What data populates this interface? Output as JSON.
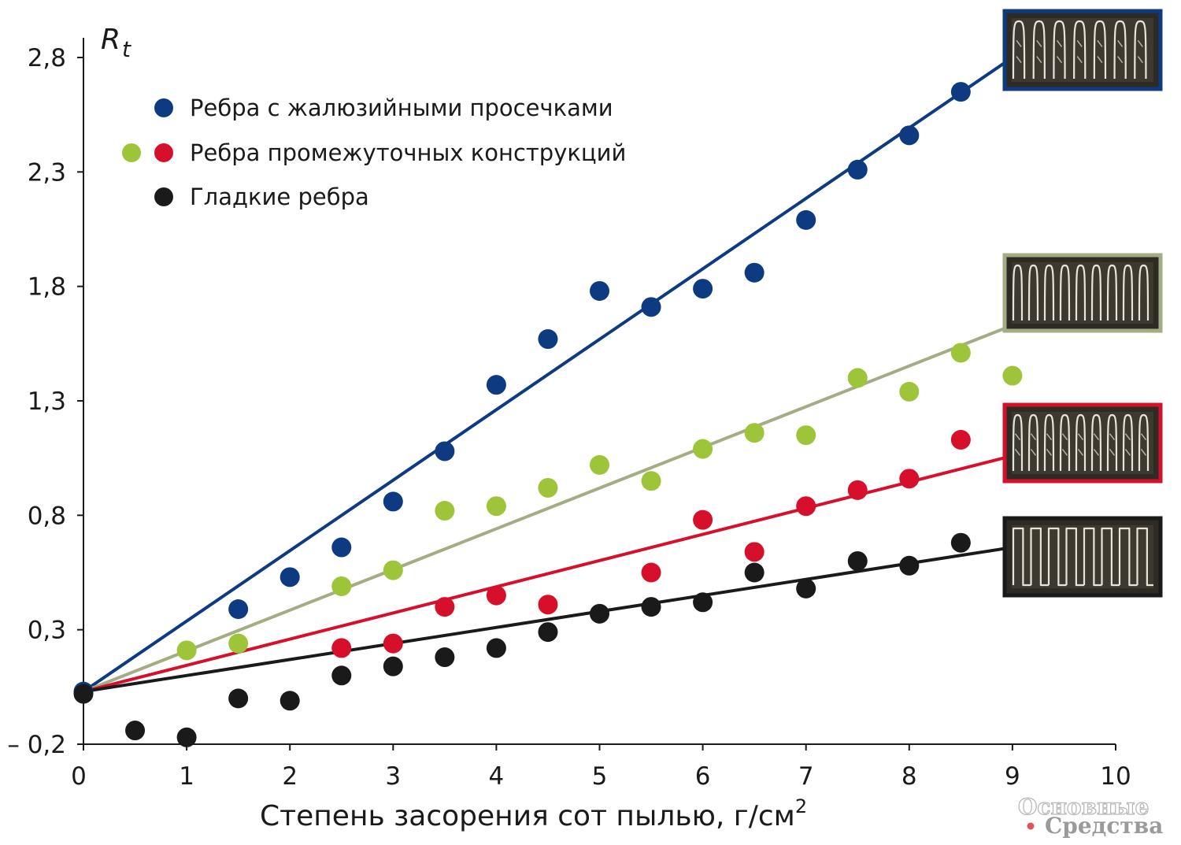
{
  "chart_data": {
    "type": "scatter",
    "ylabel": "R",
    "ylabel_sub": "t",
    "xlabel": "Степень засорения сот пылью, г/см",
    "xlabel_sup": "2",
    "xlim": [
      0,
      10
    ],
    "ylim": [
      -0.2,
      2.9
    ],
    "x_ticks": [
      "0",
      "1",
      "2",
      "3",
      "4",
      "5",
      "6",
      "7",
      "8",
      "9",
      "10"
    ],
    "y_ticks": [
      {
        "value": -0.2,
        "label": "– 0,2"
      },
      {
        "value": 0.3,
        "label": "0,3"
      },
      {
        "value": 0.8,
        "label": "0,8"
      },
      {
        "value": 1.3,
        "label": "1,3"
      },
      {
        "value": 1.8,
        "label": "1,8"
      },
      {
        "value": 2.3,
        "label": "2,3"
      },
      {
        "value": 2.8,
        "label": "2,8"
      }
    ],
    "legend_position": "top-left",
    "legend": [
      {
        "label": "Ребра с жалюзийными просечками",
        "colors": [
          "#0d3a80"
        ]
      },
      {
        "label": "Ребра промежуточных конструкций",
        "colors": [
          "#9ec53a",
          "#d6102a"
        ]
      },
      {
        "label": "Гладкие ребра",
        "colors": [
          "#1a1a1a"
        ]
      }
    ],
    "series": [
      {
        "color": "#0d3a80",
        "trend": [
          [
            0,
            0.03
          ],
          [
            9,
            2.8
          ]
        ],
        "points": [
          [
            0,
            0.03
          ],
          [
            1.5,
            0.39
          ],
          [
            2,
            0.53
          ],
          [
            2.5,
            0.66
          ],
          [
            3,
            0.86
          ],
          [
            3.5,
            1.08
          ],
          [
            4,
            1.37
          ],
          [
            4.5,
            1.57
          ],
          [
            5,
            1.78
          ],
          [
            5.5,
            1.71
          ],
          [
            6,
            1.79
          ],
          [
            6.5,
            1.86
          ],
          [
            7,
            2.09
          ],
          [
            7.5,
            2.31
          ],
          [
            8,
            2.46
          ],
          [
            8.5,
            2.65
          ]
        ]
      },
      {
        "color": "#9ec53a",
        "line_color": "#a3ad83",
        "trend": [
          [
            0,
            0.03
          ],
          [
            9,
            1.63
          ]
        ],
        "points": [
          [
            1,
            0.21
          ],
          [
            1.5,
            0.24
          ],
          [
            2.5,
            0.49
          ],
          [
            3,
            0.56
          ],
          [
            3.5,
            0.82
          ],
          [
            4,
            0.84
          ],
          [
            4.5,
            0.92
          ],
          [
            5,
            1.02
          ],
          [
            5.5,
            0.95
          ],
          [
            6,
            1.09
          ],
          [
            6.5,
            1.16
          ],
          [
            7,
            1.15
          ],
          [
            7.5,
            1.4
          ],
          [
            8,
            1.34
          ],
          [
            8.5,
            1.51
          ],
          [
            9,
            1.41
          ]
        ]
      },
      {
        "color": "#d6102a",
        "trend": [
          [
            0,
            0.03
          ],
          [
            9,
            1.06
          ]
        ],
        "points": [
          [
            2.5,
            0.22
          ],
          [
            3,
            0.24
          ],
          [
            3.5,
            0.4
          ],
          [
            4,
            0.45
          ],
          [
            4.5,
            0.41
          ],
          [
            5.5,
            0.55
          ],
          [
            6,
            0.78
          ],
          [
            6.5,
            0.64
          ],
          [
            7,
            0.84
          ],
          [
            7.5,
            0.91
          ],
          [
            8,
            0.96
          ],
          [
            8.5,
            1.13
          ]
        ]
      },
      {
        "color": "#1a1a1a",
        "trend": [
          [
            0,
            0.03
          ],
          [
            9,
            0.66
          ]
        ],
        "points": [
          [
            0,
            0.02
          ],
          [
            0.5,
            -0.14
          ],
          [
            1,
            -0.17
          ],
          [
            1.5,
            0.0
          ],
          [
            2,
            -0.01
          ],
          [
            2.5,
            0.1
          ],
          [
            3,
            0.14
          ],
          [
            3.5,
            0.18
          ],
          [
            4,
            0.22
          ],
          [
            4.5,
            0.29
          ],
          [
            5,
            0.37
          ],
          [
            5.5,
            0.4
          ],
          [
            6,
            0.42
          ],
          [
            6.5,
            0.55
          ],
          [
            7,
            0.48
          ],
          [
            7.5,
            0.6
          ],
          [
            8,
            0.58
          ],
          [
            8.5,
            0.68
          ]
        ]
      }
    ],
    "thumbnails": [
      {
        "name": "thumbnail-louvered",
        "border": "#0d3a80",
        "fin": "louvered"
      },
      {
        "name": "thumbnail-intermediate-green",
        "border": "#a3ad83",
        "fin": "tall"
      },
      {
        "name": "thumbnail-intermediate-red",
        "border": "#d6102a",
        "fin": "wavy"
      },
      {
        "name": "thumbnail-smooth",
        "border": "#1a1a1a",
        "fin": "plain"
      }
    ]
  },
  "watermark": {
    "line1": "Основные",
    "line2": "Средства"
  }
}
